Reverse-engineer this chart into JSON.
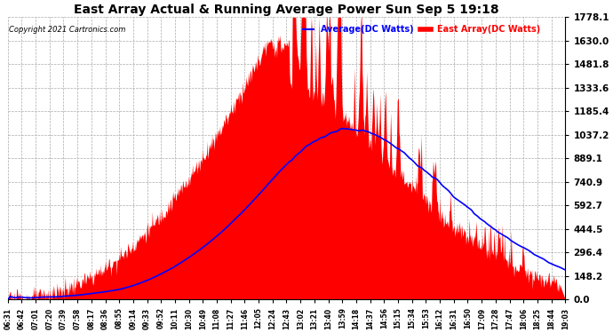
{
  "title": "East Array Actual & Running Average Power Sun Sep 5 19:18",
  "copyright": "Copyright 2021 Cartronics.com",
  "legend_avg": "Average(DC Watts)",
  "legend_east": "East Array(DC Watts)",
  "ymax": 1778.1,
  "ymin": 0.0,
  "yticks": [
    0.0,
    148.2,
    296.4,
    444.5,
    592.7,
    740.9,
    889.1,
    1037.2,
    1185.4,
    1333.6,
    1481.8,
    1630.0,
    1778.1
  ],
  "fill_color": "#ff0000",
  "avg_color": "#0000ff",
  "title_color": "#000000",
  "xtick_labels": [
    "06:31",
    "06:42",
    "07:01",
    "07:20",
    "07:39",
    "07:58",
    "08:17",
    "08:36",
    "08:55",
    "09:14",
    "09:33",
    "09:52",
    "10:11",
    "10:30",
    "10:49",
    "11:08",
    "11:27",
    "11:46",
    "12:05",
    "12:24",
    "12:43",
    "13:02",
    "13:21",
    "13:40",
    "13:59",
    "14:18",
    "14:37",
    "14:56",
    "15:15",
    "15:34",
    "15:53",
    "16:12",
    "16:31",
    "16:50",
    "17:09",
    "17:28",
    "17:47",
    "18:06",
    "18:25",
    "18:44",
    "19:03"
  ],
  "figsize": [
    6.9,
    3.75
  ],
  "dpi": 100
}
